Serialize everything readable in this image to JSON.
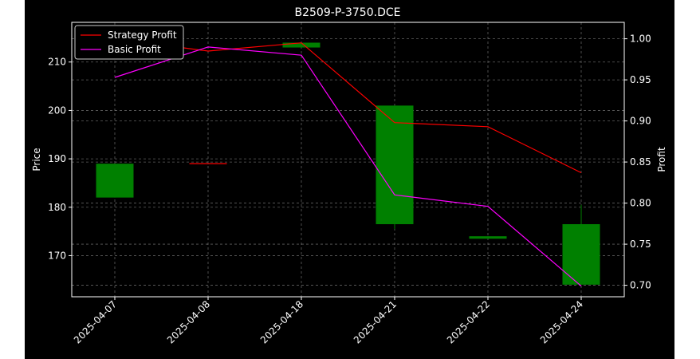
{
  "chart_data": {
    "type": "candlestick",
    "title": "B2509-P-3750.DCE",
    "xlabel": "",
    "ylabel": "Price",
    "y2label": "Profit",
    "categories": [
      "2025-04-07",
      "2025-04-08",
      "2025-04-18",
      "2025-04-21",
      "2025-04-22",
      "2025-04-24"
    ],
    "ylim": [
      161.5,
      218.2
    ],
    "y2lim": [
      0.686,
      1.02
    ],
    "yticks": [
      170,
      180,
      190,
      200,
      210
    ],
    "y2ticks": [
      "0.70",
      "0.75",
      "0.80",
      "0.85",
      "0.90",
      "0.95",
      "1.00"
    ],
    "grid": true,
    "legend_position": "top-left",
    "candles": [
      {
        "date": "2025-04-07",
        "open": 182,
        "high": 189,
        "low": 182,
        "close": 189,
        "color": "#008000"
      },
      {
        "date": "2025-04-08",
        "open": 189,
        "high": 189,
        "low": 189,
        "close": 189,
        "color": "#ff0000"
      },
      {
        "date": "2025-04-18",
        "open": 213,
        "high": 214,
        "low": 213,
        "close": 214,
        "color": "#008000"
      },
      {
        "date": "2025-04-21",
        "open": 176.5,
        "high": 201,
        "low": 175.5,
        "close": 201,
        "color": "#008000"
      },
      {
        "date": "2025-04-22",
        "open": 173.5,
        "high": 174,
        "low": 173.5,
        "close": 174,
        "color": "#008000"
      },
      {
        "date": "2025-04-24",
        "open": 164,
        "high": 180.5,
        "low": 164,
        "close": 176.5,
        "color": "#008000"
      }
    ],
    "series": [
      {
        "name": "Strategy Profit",
        "axis": "right",
        "color": "#ff0000",
        "values": [
          1.0,
          0.985,
          0.995,
          0.898,
          0.893,
          0.837
        ]
      },
      {
        "name": "Basic Profit",
        "axis": "right",
        "color": "#ff00ff",
        "values": [
          0.953,
          0.99,
          0.98,
          0.81,
          0.796,
          0.699
        ]
      }
    ]
  }
}
